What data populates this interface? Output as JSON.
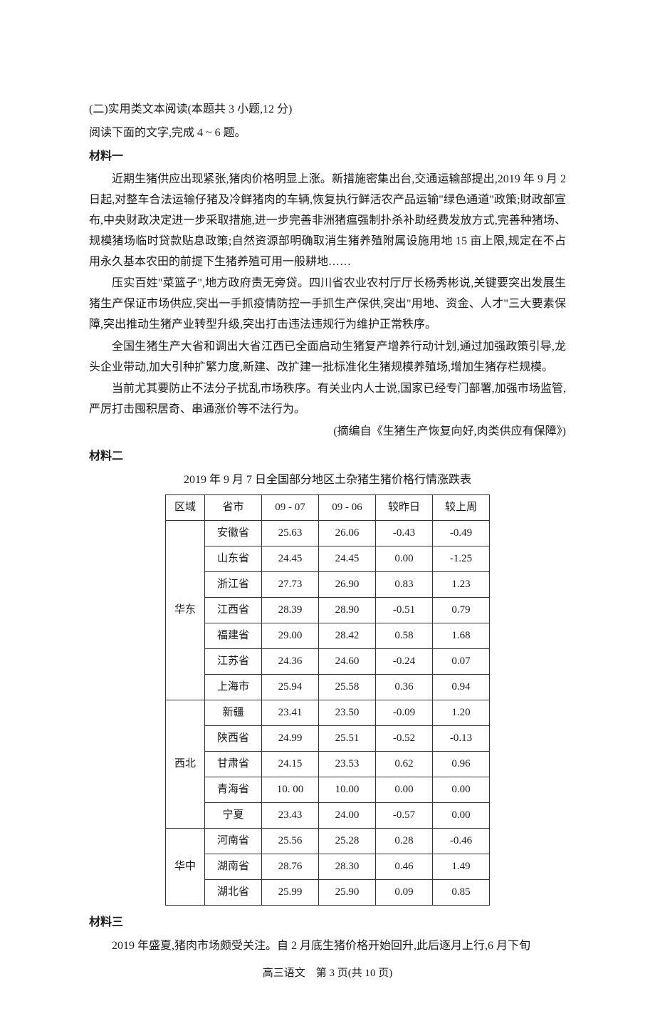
{
  "heading": "(二)实用类文本阅读(本题共 3 小题,12 分)",
  "instruction": "阅读下面的文字,完成 4 ~ 6 题。",
  "material1": {
    "label": "材料一",
    "p1": "近期生猪供应出现紧张,猪肉价格明显上涨。新措施密集出台,交通运输部提出,2019 年 9 月 2 日起,对整车合法运输仔猪及冷鲜猪肉的车辆,恢复执行鲜活农产品运输\"绿色通道\"政策;财政部宣布,中央财政决定进一步采取措施,进一步完善非洲猪瘟强制扑杀补助经费发放方式,完善种猪场、规模猪场临时贷款贴息政策;自然资源部明确取消生猪养殖附属设施用地 15 亩上限,规定在不占用永久基本农田的前提下生猪养殖可用一般耕地……",
    "p2": "压实百姓\"菜篮子\",地方政府责无旁贷。四川省农业农村厅厅长杨秀彬说,关键要突出发展生猪生产保证市场供应,突出一手抓疫情防控一手抓生产保供,突出\"用地、资金、人才\"三大要素保障,突出推动生猪产业转型升级,突出打击违法违规行为维护正常秩序。",
    "p3": "全国生猪生产大省和调出大省江西已全面启动生猪复产增养行动计划,通过加强政策引导,龙头企业带动,加大引种扩繁力度,新建、改扩建一批标准化生猪规模养殖场,增加生猪存栏规模。",
    "p4": "当前尤其要防止不法分子扰乱市场秩序。有关业内人士说,国家已经专门部署,加强市场监管,严厉打击囤积居奇、串通涨价等不法行为。",
    "citation": "(摘编自《生猪生产恢复向好,肉类供应有保障》)"
  },
  "material2": {
    "label": "材料二",
    "tableTitle": "2019 年 9 月 7 日全国部分地区土杂猪生猪价格行情涨跌表",
    "headers": {
      "region": "区域",
      "province": "省市",
      "date1": "09 - 07",
      "date2": "09 - 06",
      "yesterday": "较昨日",
      "lastweek": "较上周"
    },
    "groups": [
      {
        "region": "华东",
        "rows": [
          {
            "province": "安徽省",
            "d1": "25.63",
            "d2": "26.06",
            "yd": "-0.43",
            "lw": "-0.49"
          },
          {
            "province": "山东省",
            "d1": "24.45",
            "d2": "24.45",
            "yd": "0.00",
            "lw": "-1.25"
          },
          {
            "province": "浙江省",
            "d1": "27.73",
            "d2": "26.90",
            "yd": "0.83",
            "lw": "1.23"
          },
          {
            "province": "江西省",
            "d1": "28.39",
            "d2": "28.90",
            "yd": "-0.51",
            "lw": "0.79"
          },
          {
            "province": "福建省",
            "d1": "29.00",
            "d2": "28.42",
            "yd": "0.58",
            "lw": "1.68"
          },
          {
            "province": "江苏省",
            "d1": "24.36",
            "d2": "24.60",
            "yd": "-0.24",
            "lw": "0.07"
          },
          {
            "province": "上海市",
            "d1": "25.94",
            "d2": "25.58",
            "yd": "0.36",
            "lw": "0.94"
          }
        ]
      },
      {
        "region": "西北",
        "rows": [
          {
            "province": "新疆",
            "d1": "23.41",
            "d2": "23.50",
            "yd": "-0.09",
            "lw": "1.20"
          },
          {
            "province": "陕西省",
            "d1": "24.99",
            "d2": "25.51",
            "yd": "-0.52",
            "lw": "-0.13"
          },
          {
            "province": "甘肃省",
            "d1": "24.15",
            "d2": "23.53",
            "yd": "0.62",
            "lw": "0.96"
          },
          {
            "province": "青海省",
            "d1": "10. 00",
            "d2": "10.00",
            "yd": "0.00",
            "lw": "0.00"
          },
          {
            "province": "宁夏",
            "d1": "23.43",
            "d2": "24.00",
            "yd": "-0.57",
            "lw": "0.00"
          }
        ]
      },
      {
        "region": "华中",
        "rows": [
          {
            "province": "河南省",
            "d1": "25.56",
            "d2": "25.28",
            "yd": "0.28",
            "lw": "-0.46"
          },
          {
            "province": "湖南省",
            "d1": "28.76",
            "d2": "28.30",
            "yd": "0.46",
            "lw": "1.49"
          },
          {
            "province": "湖北省",
            "d1": "25.99",
            "d2": "25.90",
            "yd": "0.09",
            "lw": "0.85"
          }
        ]
      }
    ]
  },
  "material3": {
    "label": "材料三",
    "p1": "2019 年盛夏,猪肉市场颇受关注。自 2 月底生猪价格开始回升,此后逐月上行,6 月下旬"
  },
  "footer": "高三语文　第 3 页(共 10 页)",
  "style": {
    "body_bg": "#ffffff",
    "text_color": "#1a1a1a",
    "border_color": "#333333",
    "font_size_body": 16,
    "font_size_table": 15
  }
}
